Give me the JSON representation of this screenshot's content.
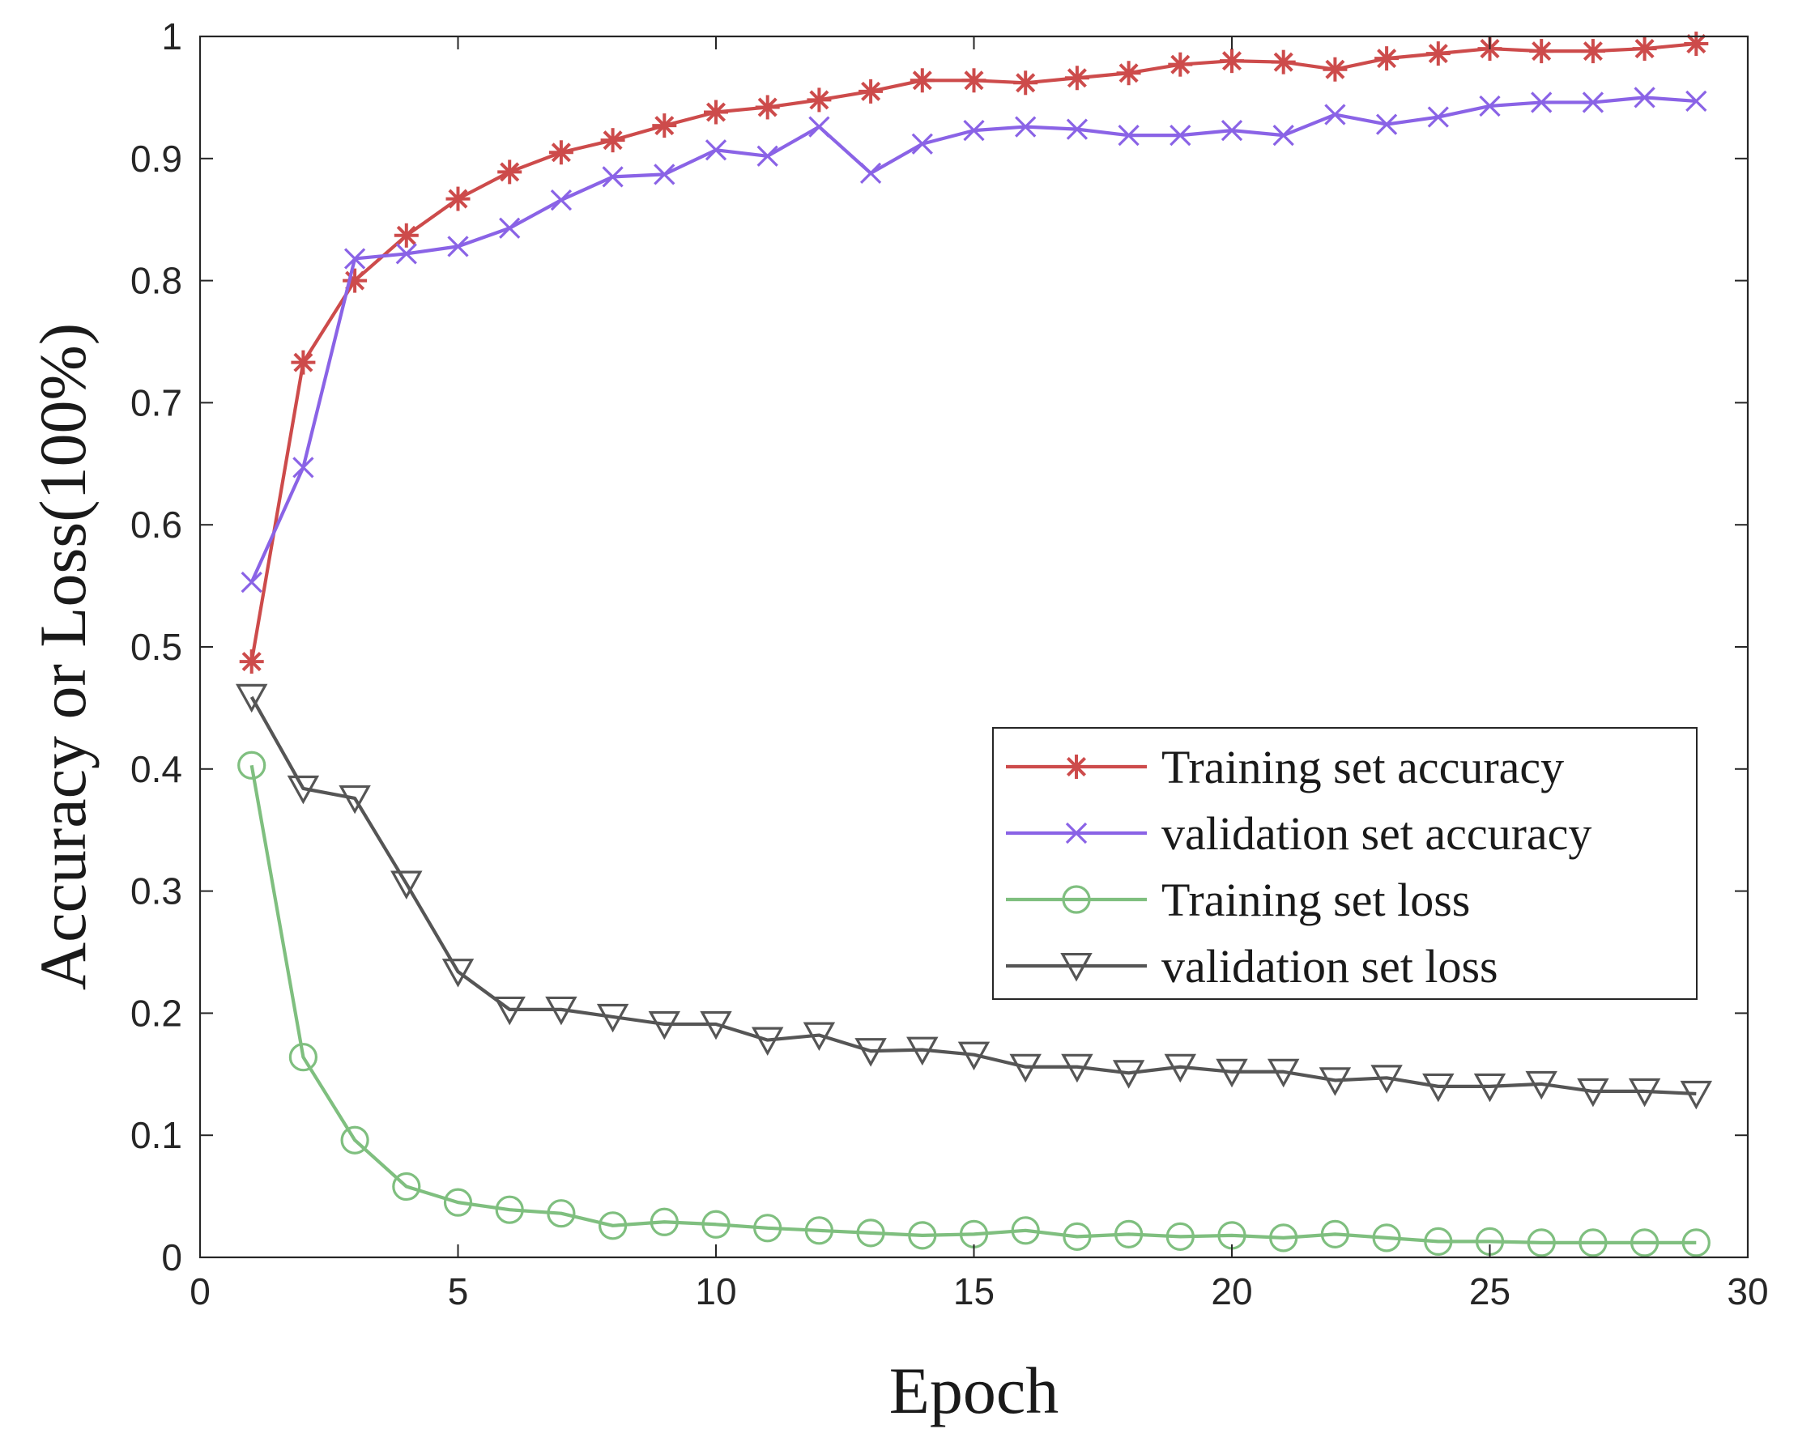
{
  "chart_data": {
    "type": "line",
    "title": "",
    "xlabel": "Epoch",
    "ylabel": "Accuracy or Loss(100%)",
    "xlim": [
      0,
      30
    ],
    "ylim": [
      0,
      1
    ],
    "xticks": [
      "0",
      "5",
      "10",
      "15",
      "20",
      "25",
      "30"
    ],
    "yticks": [
      "0",
      "0.1",
      "0.2",
      "0.3",
      "0.4",
      "0.5",
      "0.6",
      "0.7",
      "0.8",
      "0.9",
      "1"
    ],
    "grid": false,
    "legend_position": "right-middle",
    "x": [
      1,
      2,
      3,
      4,
      5,
      6,
      7,
      8,
      9,
      10,
      11,
      12,
      13,
      14,
      15,
      16,
      17,
      18,
      19,
      20,
      21,
      22,
      23,
      24,
      25,
      26,
      27,
      28,
      29
    ],
    "series": [
      {
        "name": "Training set accuracy",
        "color": "#cd4b4b",
        "marker": "asterisk",
        "values": [
          0.488,
          0.733,
          0.8,
          0.837,
          0.867,
          0.889,
          0.905,
          0.915,
          0.927,
          0.938,
          0.942,
          0.948,
          0.955,
          0.964,
          0.964,
          0.962,
          0.966,
          0.97,
          0.977,
          0.98,
          0.979,
          0.973,
          0.982,
          0.986,
          0.99,
          0.988,
          0.988,
          0.99,
          0.994
        ]
      },
      {
        "name": "validation set accuracy",
        "color": "#8a63e6",
        "marker": "x",
        "values": [
          0.553,
          0.647,
          0.818,
          0.822,
          0.828,
          0.843,
          0.866,
          0.885,
          0.887,
          0.907,
          0.902,
          0.926,
          0.888,
          0.912,
          0.923,
          0.926,
          0.924,
          0.919,
          0.919,
          0.923,
          0.919,
          0.936,
          0.928,
          0.934,
          0.943,
          0.946,
          0.946,
          0.95,
          0.947
        ]
      },
      {
        "name": "Training set loss",
        "color": "#7fbf7f",
        "marker": "circle",
        "values": [
          0.403,
          0.164,
          0.096,
          0.058,
          0.045,
          0.039,
          0.036,
          0.026,
          0.029,
          0.027,
          0.024,
          0.022,
          0.02,
          0.018,
          0.019,
          0.022,
          0.017,
          0.019,
          0.017,
          0.018,
          0.016,
          0.019,
          0.016,
          0.013,
          0.013,
          0.012,
          0.012,
          0.012,
          0.012
        ]
      },
      {
        "name": "validation set loss",
        "color": "#555555",
        "marker": "triangle-down",
        "values": [
          0.459,
          0.384,
          0.376,
          0.306,
          0.234,
          0.203,
          0.203,
          0.197,
          0.191,
          0.191,
          0.178,
          0.182,
          0.169,
          0.17,
          0.166,
          0.156,
          0.156,
          0.151,
          0.156,
          0.152,
          0.152,
          0.145,
          0.147,
          0.14,
          0.14,
          0.142,
          0.136,
          0.136,
          0.134
        ]
      }
    ]
  }
}
